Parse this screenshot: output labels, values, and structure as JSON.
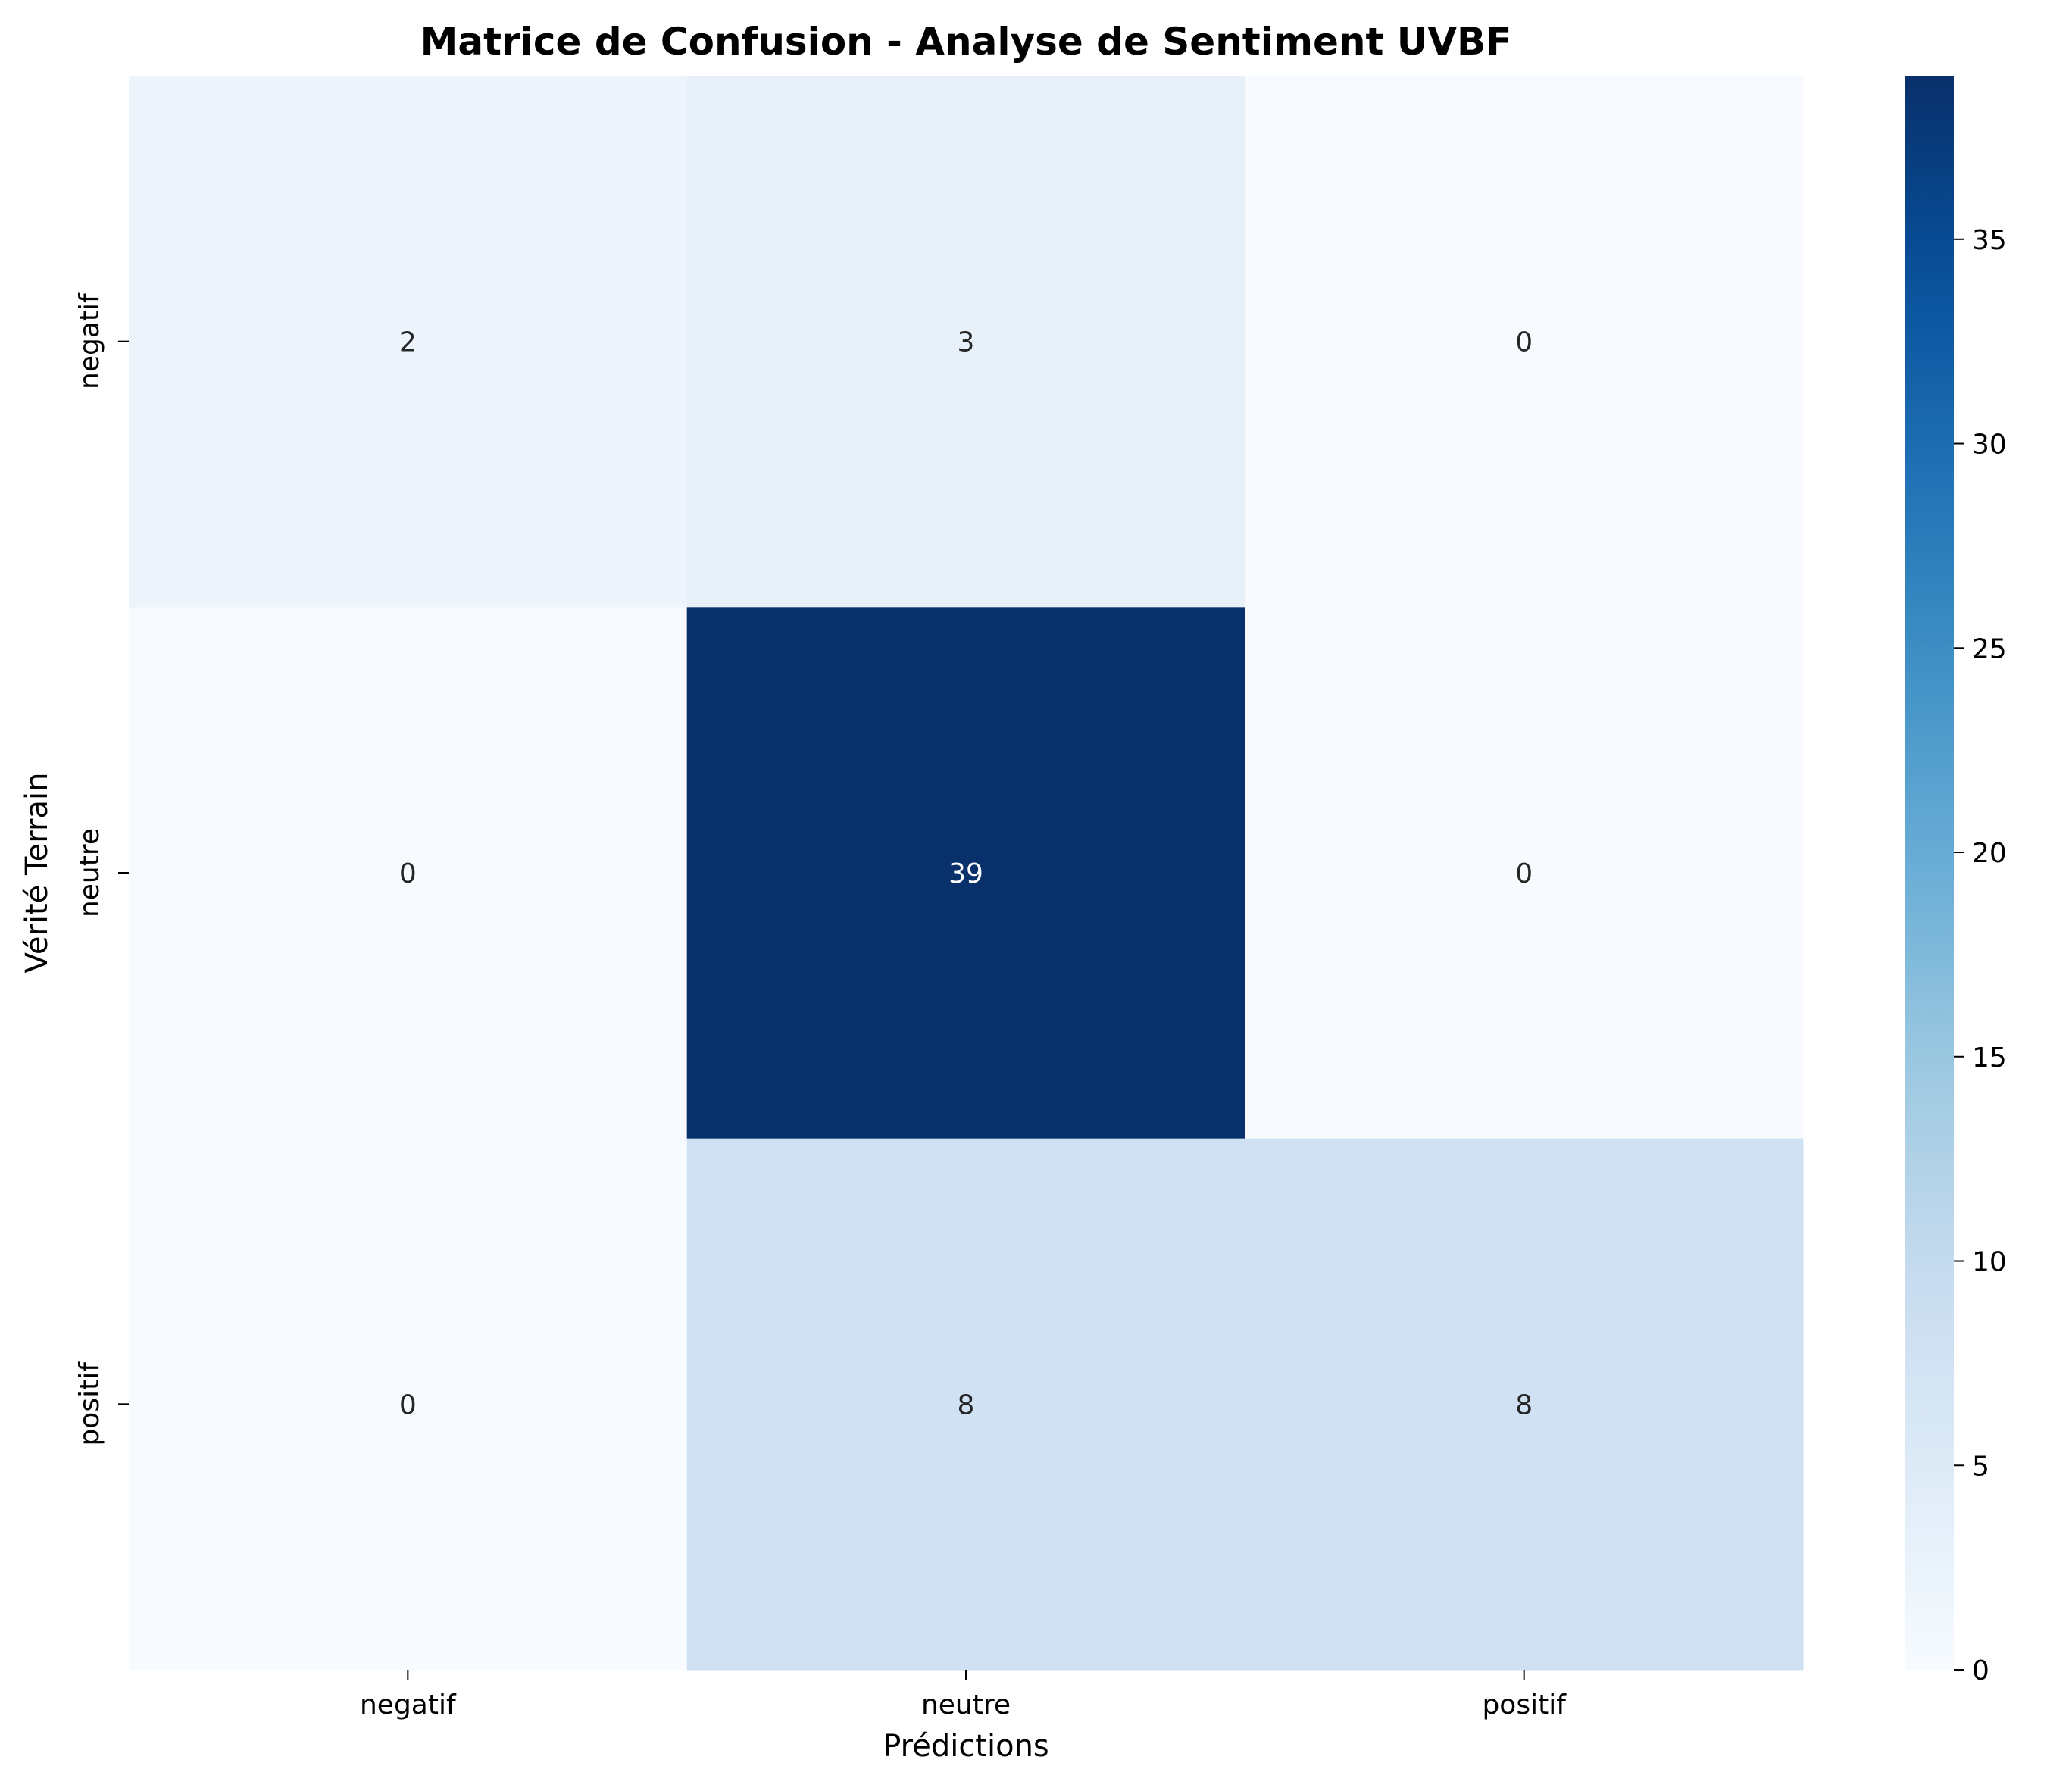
{
  "chart_data": {
    "type": "heatmap",
    "title": "Matrice de Confusion - Analyse de Sentiment UVBF",
    "xlabel": "Prédictions",
    "ylabel": "Vérité Terrain",
    "x_categories": [
      "negatif",
      "neutre",
      "positif"
    ],
    "y_categories": [
      "negatif",
      "neutre",
      "positif"
    ],
    "values": [
      [
        2,
        3,
        0
      ],
      [
        0,
        39,
        0
      ],
      [
        0,
        8,
        8
      ]
    ],
    "colormap": "Blues",
    "colorbar": {
      "min": 0,
      "max": 39,
      "ticks": [
        0,
        5,
        10,
        15,
        20,
        25,
        30,
        35
      ]
    },
    "annotate": true
  }
}
